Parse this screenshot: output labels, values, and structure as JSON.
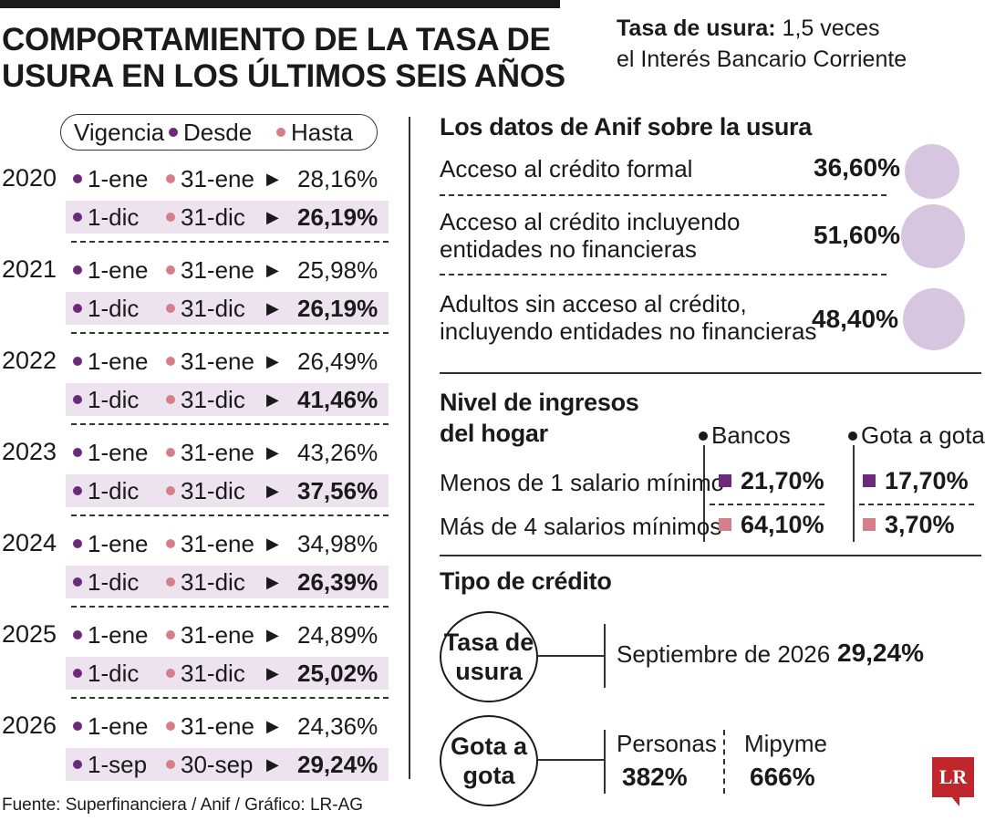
{
  "title_line1": "COMPORTAMIENTO DE LA TASA DE",
  "title_line2": "USURA EN LOS ÚLTIMOS SEIS AÑOS",
  "subtitle_bold": "Tasa de usura:",
  "subtitle_rest": " 1,5 veces",
  "subtitle_line2": "el Interés Bancario Corriente",
  "legend": {
    "vigencia": "Vigencia",
    "desde": "Desde",
    "hasta": "Hasta"
  },
  "years": [
    {
      "year": "2020",
      "rows": [
        {
          "from": "1-ene",
          "to": "31-ene",
          "value": "28,16%"
        },
        {
          "from": "1-dic",
          "to": "31-dic",
          "value": "26,19%"
        }
      ]
    },
    {
      "year": "2021",
      "rows": [
        {
          "from": "1-ene",
          "to": "31-ene",
          "value": "25,98%"
        },
        {
          "from": "1-dic",
          "to": "31-dic",
          "value": "26,19%"
        }
      ]
    },
    {
      "year": "2022",
      "rows": [
        {
          "from": "1-ene",
          "to": "31-ene",
          "value": "26,49%"
        },
        {
          "from": "1-dic",
          "to": "31-dic",
          "value": "41,46%"
        }
      ]
    },
    {
      "year": "2023",
      "rows": [
        {
          "from": "1-ene",
          "to": "31-ene",
          "value": "43,26%"
        },
        {
          "from": "1-dic",
          "to": "31-dic",
          "value": "37,56%"
        }
      ]
    },
    {
      "year": "2024",
      "rows": [
        {
          "from": "1-ene",
          "to": "31-ene",
          "value": "34,98%"
        },
        {
          "from": "1-dic",
          "to": "31-dic",
          "value": "26,39%"
        }
      ]
    },
    {
      "year": "2025",
      "rows": [
        {
          "from": "1-ene",
          "to": "31-ene",
          "value": "24,89%"
        },
        {
          "from": "1-dic",
          "to": "31-dic",
          "value": "25,02%"
        }
      ]
    },
    {
      "year": "2026",
      "rows": [
        {
          "from": "1-ene",
          "to": "31-ene",
          "value": "24,36%"
        },
        {
          "from": "1-sep",
          "to": "30-sep",
          "value": "29,24%"
        }
      ]
    }
  ],
  "anif": {
    "title": "Los datos de Anif sobre la usura",
    "items": [
      {
        "line1": "Acceso al crédito formal",
        "line2": "",
        "value": "36,60%"
      },
      {
        "line1": "Acceso al crédito incluyendo",
        "line2": "entidades no financieras",
        "value": "51,60%"
      },
      {
        "line1": "Adultos sin acceso al crédito,",
        "line2": "incluyendo entidades no financieras",
        "value": "48,40%"
      }
    ]
  },
  "ingresos": {
    "title_line1": "Nivel de ingresos",
    "title_line2": "del hogar",
    "col1": "Bancos",
    "col2": "Gota a gota",
    "rows": [
      {
        "label": "Menos de 1 salario mínimo",
        "bancos": "21,70%",
        "gota": "17,70%"
      },
      {
        "label": "Más de 4 salarios mínimos",
        "bancos": "64,10%",
        "gota": "3,70%"
      }
    ]
  },
  "credito": {
    "title": "Tipo de crédito",
    "usura_line1": "Tasa de",
    "usura_line2": "usura",
    "usura_label": "Septiembre de 2026",
    "usura_value": "29,24%",
    "gota_line1": "Gota a",
    "gota_line2": "gota",
    "personas_label": "Personas",
    "personas_value": "382%",
    "mipyme_label": "Mipyme",
    "mipyme_value": "666%"
  },
  "footer": "Fuente: Superfinanciera / Anif / Gráfico: LR-AG",
  "logo": "LR",
  "colors": {
    "dark_purple": "#6b2a7a",
    "pink": "#d57f8b",
    "light_purple": "#d7c6df",
    "shade": "#ece3ef",
    "logo_red": "#c0272d"
  }
}
